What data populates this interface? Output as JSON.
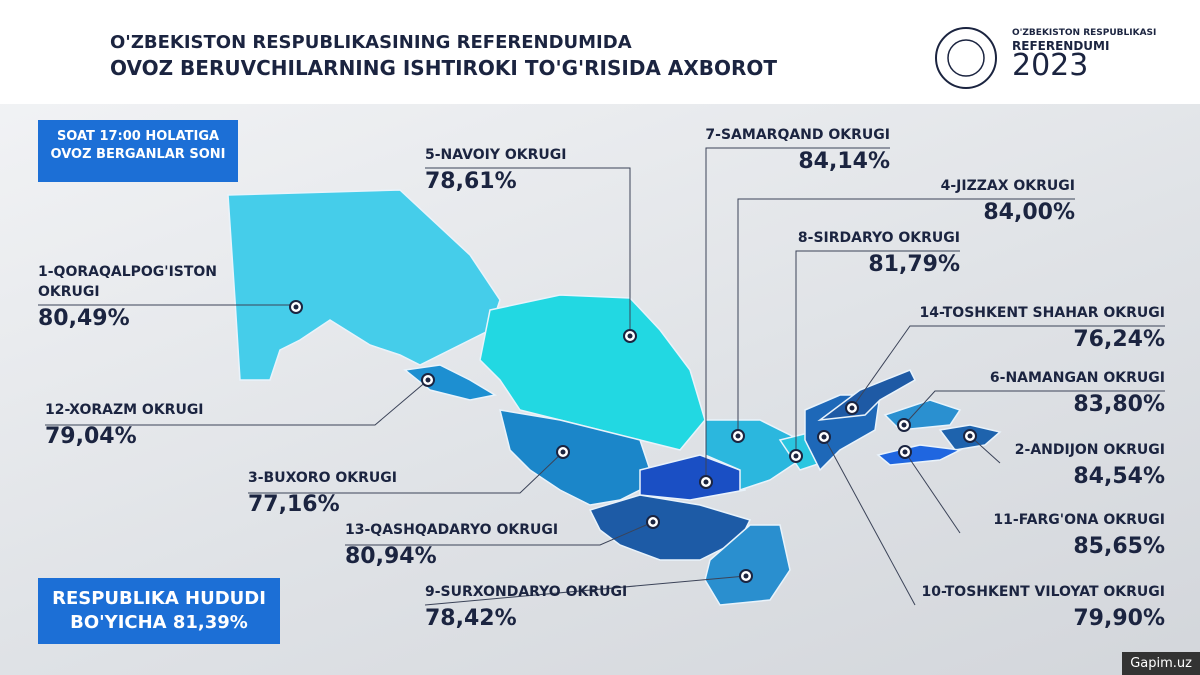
{
  "header": {
    "title_line1": "O'ZBEKISTON RESPUBLIKASINING REFERENDUMIDA",
    "title_line2": "OVOZ BERUVCHILARNING ISHTIROKI TO'G'RISIDA AXBOROT",
    "logo_top": "O'ZBEKISTON RESPUBLIKASI",
    "logo_mid": "REFERENDUMI",
    "logo_year": "2023"
  },
  "time_note": {
    "line1": "SOAT 17:00 HOLATIGA",
    "line2": "OVOZ BERGANLAR SONI"
  },
  "total": {
    "line1": "RESPUBLIKA HUDUDI",
    "line2": "BO'YICHA 81,39%"
  },
  "regions": [
    {
      "name": "1-QORAQALPOG'ISTON OKRUGI",
      "value": "80,49%"
    },
    {
      "name": "12-XORAZM OKRUGI",
      "value": "79,04%"
    },
    {
      "name": "3-BUXORO OKRUGI",
      "value": "77,16%"
    },
    {
      "name": "13-QASHQADARYO OKRUGI",
      "value": "80,94%"
    },
    {
      "name": "9-SURXONDARYO OKRUGI",
      "value": "78,42%"
    },
    {
      "name": "5-NAVOIY OKRUGI",
      "value": "78,61%"
    },
    {
      "name": "7-SAMARQAND OKRUGI",
      "value": "84,14%"
    },
    {
      "name": "4-JIZZAX OKRUGI",
      "value": "84,00%"
    },
    {
      "name": "8-SIRDARYO OKRUGI",
      "value": "81,79%"
    },
    {
      "name": "14-TOSHKENT SHAHAR OKRUGI",
      "value": "76,24%"
    },
    {
      "name": "6-NAMANGAN OKRUGI",
      "value": "83,80%"
    },
    {
      "name": "2-ANDIJON OKRUGI",
      "value": "84,54%"
    },
    {
      "name": "11-FARG'ONA OKRUGI",
      "value": "85,65%"
    },
    {
      "name": "10-TOSHKENT VILOYAT OKRUGI",
      "value": "79,90%"
    }
  ],
  "watermark": "Gapim.uz"
}
